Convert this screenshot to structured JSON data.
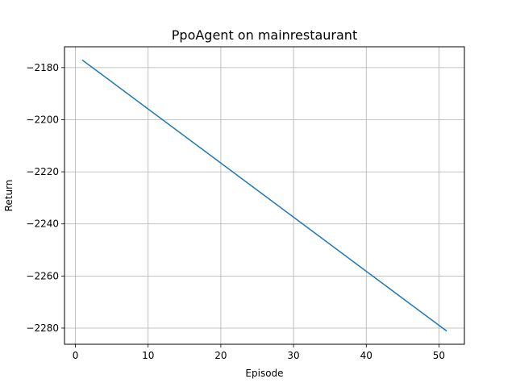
{
  "chart_data": {
    "type": "line",
    "title": "PpoAgent on mainrestaurant",
    "xlabel": "Episode",
    "ylabel": "Return",
    "xlim": [
      -1.5,
      53.5
    ],
    "ylim": [
      -2286.2,
      -2172.0
    ],
    "xticks": [
      0,
      10,
      20,
      30,
      40,
      50
    ],
    "yticks": [
      -2180,
      -2200,
      -2220,
      -2240,
      -2260,
      -2280
    ],
    "xtick_labels": [
      "0",
      "10",
      "20",
      "30",
      "40",
      "50"
    ],
    "ytick_labels": [
      "−2180",
      "−2200",
      "−2220",
      "−2240",
      "−2260",
      "−2280"
    ],
    "grid": true,
    "series": [
      {
        "color": "#1f77b4",
        "x": [
          1,
          51
        ],
        "y": [
          -2177.2,
          -2281.0
        ]
      }
    ]
  }
}
